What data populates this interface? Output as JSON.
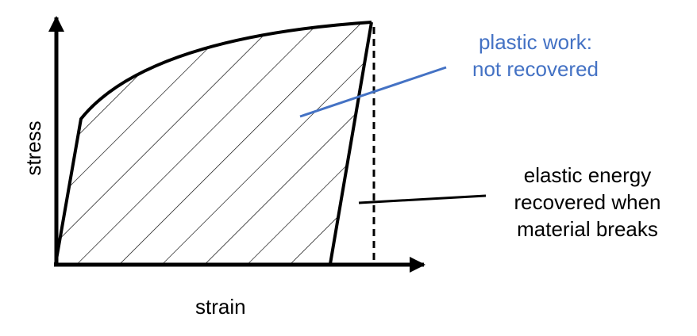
{
  "axes": {
    "x_label": "strain",
    "y_label": "stress"
  },
  "annotations": {
    "plastic": {
      "lines": [
        "plastic work:",
        "not recovered"
      ],
      "color": "#4472c4"
    },
    "elastic": {
      "lines": [
        "elastic energy",
        "recovered when",
        "material breaks"
      ],
      "color": "#000000"
    }
  },
  "colors": {
    "curve": "#000000",
    "hatch": "#000000",
    "plastic_pointer": "#4472c4",
    "elastic_pointer": "#000000"
  }
}
